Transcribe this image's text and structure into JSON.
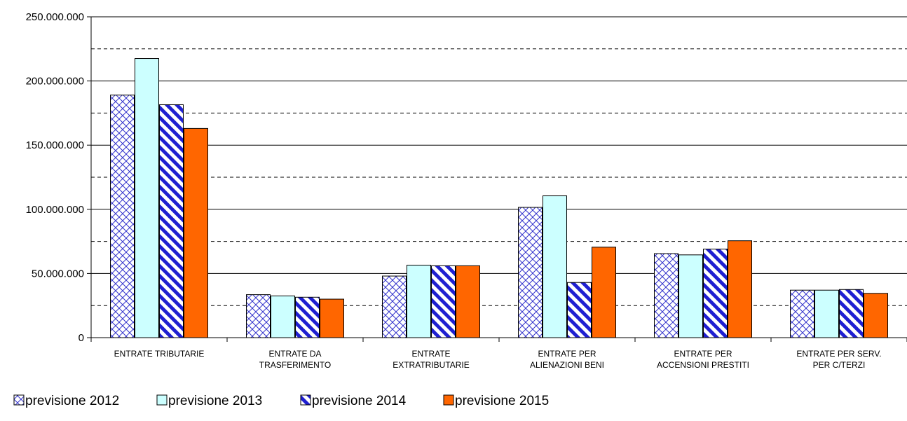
{
  "chart_data": {
    "type": "bar",
    "categories": [
      [
        "ENTRATE TRIBUTARIE"
      ],
      [
        "ENTRATE DA",
        "TRASFERIMENTO"
      ],
      [
        "ENTRATE",
        "EXTRATRIBUTARIE"
      ],
      [
        "ENTRATE PER",
        "ALIENAZIONI BENI"
      ],
      [
        "ENTRATE PER",
        "ACCENSIONI PRESTITI"
      ],
      [
        "ENTRATE PER SERV.",
        "PER C/TERZI"
      ]
    ],
    "series": [
      {
        "name": "previsione 2012",
        "pattern": "crosshatch",
        "color": "#3333cc",
        "fill": "#ffffff",
        "values": [
          189000000,
          33500000,
          48000000,
          101500000,
          65500000,
          37000000
        ]
      },
      {
        "name": "previsione 2013",
        "pattern": "solid",
        "color": "#ccffff",
        "values": [
          217500000,
          32500000,
          56500000,
          110500000,
          64500000,
          37000000
        ]
      },
      {
        "name": "previsione 2014",
        "pattern": "diagonal-stripes",
        "color": "#1f1fd1",
        "fill": "#ffffff",
        "values": [
          181500000,
          31500000,
          56000000,
          43000000,
          69000000,
          37500000
        ]
      },
      {
        "name": "previsione 2015",
        "pattern": "solid",
        "color": "#ff6600",
        "values": [
          163000000,
          30000000,
          56000000,
          70500000,
          75500000,
          34500000
        ]
      }
    ],
    "ylim": [
      0,
      250000000
    ],
    "yticks": [
      "0",
      "50.000.000",
      "100.000.000",
      "150.000.000",
      "200.000.000",
      "250.000.000"
    ],
    "major_grid_step": 50000000,
    "minor_grid_step": 25000000,
    "grid": "solid major, dashed minor",
    "legend_position": "bottom"
  }
}
